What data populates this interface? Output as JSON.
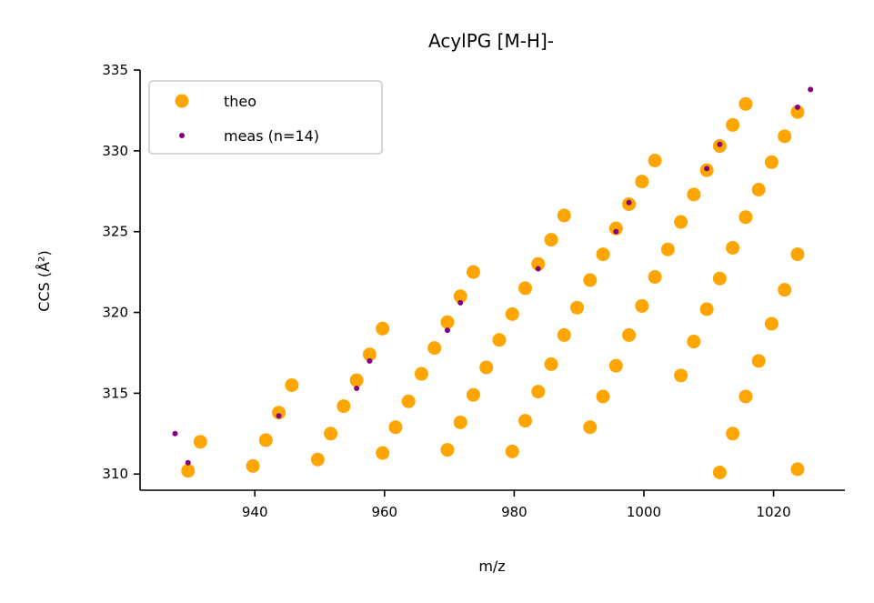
{
  "chart_data": {
    "type": "scatter",
    "title": "AcylPG [M-H]-",
    "xlabel": "m/z",
    "ylabel": "CCS (Å²)",
    "xlim": [
      922.3,
      1031.0
    ],
    "ylim": [
      309.0,
      335.0
    ],
    "xticks": [
      940,
      960,
      980,
      1000,
      1020
    ],
    "yticks": [
      310,
      315,
      320,
      325,
      330,
      335
    ],
    "grid": false,
    "legend_position": "top-left",
    "series": [
      {
        "name": "theo",
        "color": "#FFA500",
        "marker": "large-circle",
        "points": [
          [
            929.7,
            310.2
          ],
          [
            931.6,
            312.0
          ],
          [
            939.7,
            310.5
          ],
          [
            941.7,
            312.1
          ],
          [
            943.7,
            313.8
          ],
          [
            945.7,
            315.5
          ],
          [
            949.7,
            310.9
          ],
          [
            951.7,
            312.5
          ],
          [
            953.7,
            314.2
          ],
          [
            955.7,
            315.8
          ],
          [
            957.7,
            317.4
          ],
          [
            959.7,
            319.0
          ],
          [
            959.7,
            311.3
          ],
          [
            961.7,
            312.9
          ],
          [
            963.7,
            314.5
          ],
          [
            965.7,
            316.2
          ],
          [
            967.7,
            317.8
          ],
          [
            969.7,
            319.4
          ],
          [
            971.7,
            321.0
          ],
          [
            973.7,
            322.5
          ],
          [
            969.7,
            311.5
          ],
          [
            971.7,
            313.2
          ],
          [
            973.7,
            314.9
          ],
          [
            975.7,
            316.6
          ],
          [
            977.7,
            318.3
          ],
          [
            979.7,
            319.9
          ],
          [
            981.7,
            321.5
          ],
          [
            983.7,
            323.0
          ],
          [
            985.7,
            324.5
          ],
          [
            987.7,
            326.0
          ],
          [
            979.7,
            311.4
          ],
          [
            981.7,
            313.3
          ],
          [
            983.7,
            315.1
          ],
          [
            985.7,
            316.8
          ],
          [
            987.7,
            318.6
          ],
          [
            989.7,
            320.3
          ],
          [
            991.7,
            322.0
          ],
          [
            993.7,
            323.6
          ],
          [
            995.7,
            325.2
          ],
          [
            997.7,
            326.7
          ],
          [
            999.7,
            328.1
          ],
          [
            1001.7,
            329.4
          ],
          [
            991.7,
            312.9
          ],
          [
            993.7,
            314.8
          ],
          [
            995.7,
            316.7
          ],
          [
            997.7,
            318.6
          ],
          [
            999.7,
            320.4
          ],
          [
            1001.7,
            322.2
          ],
          [
            1003.7,
            323.9
          ],
          [
            1005.7,
            325.6
          ],
          [
            1007.7,
            327.3
          ],
          [
            1009.7,
            328.8
          ],
          [
            1011.7,
            330.3
          ],
          [
            1013.7,
            331.6
          ],
          [
            1015.7,
            332.9
          ],
          [
            1005.7,
            316.1
          ],
          [
            1007.7,
            318.2
          ],
          [
            1009.7,
            320.2
          ],
          [
            1011.7,
            322.1
          ],
          [
            1013.7,
            324.0
          ],
          [
            1015.7,
            325.9
          ],
          [
            1017.7,
            327.6
          ],
          [
            1019.7,
            329.3
          ],
          [
            1021.7,
            330.9
          ],
          [
            1023.7,
            332.4
          ],
          [
            1011.7,
            310.1
          ],
          [
            1013.7,
            312.5
          ],
          [
            1015.7,
            314.8
          ],
          [
            1017.7,
            317.0
          ],
          [
            1019.7,
            319.3
          ],
          [
            1021.7,
            321.4
          ],
          [
            1023.7,
            323.6
          ],
          [
            1023.7,
            310.3
          ]
        ]
      },
      {
        "name": "meas (n=14)",
        "color": "#800080",
        "marker": "small-circle",
        "points": [
          [
            927.7,
            312.5
          ],
          [
            929.7,
            310.7
          ],
          [
            943.7,
            313.6
          ],
          [
            955.7,
            315.3
          ],
          [
            957.7,
            317.0
          ],
          [
            969.7,
            318.9
          ],
          [
            971.7,
            320.6
          ],
          [
            983.7,
            322.7
          ],
          [
            995.7,
            325.0
          ],
          [
            997.7,
            326.8
          ],
          [
            1009.7,
            328.9
          ],
          [
            1011.7,
            330.4
          ],
          [
            1023.7,
            332.7
          ],
          [
            1025.7,
            333.8
          ]
        ]
      }
    ]
  }
}
